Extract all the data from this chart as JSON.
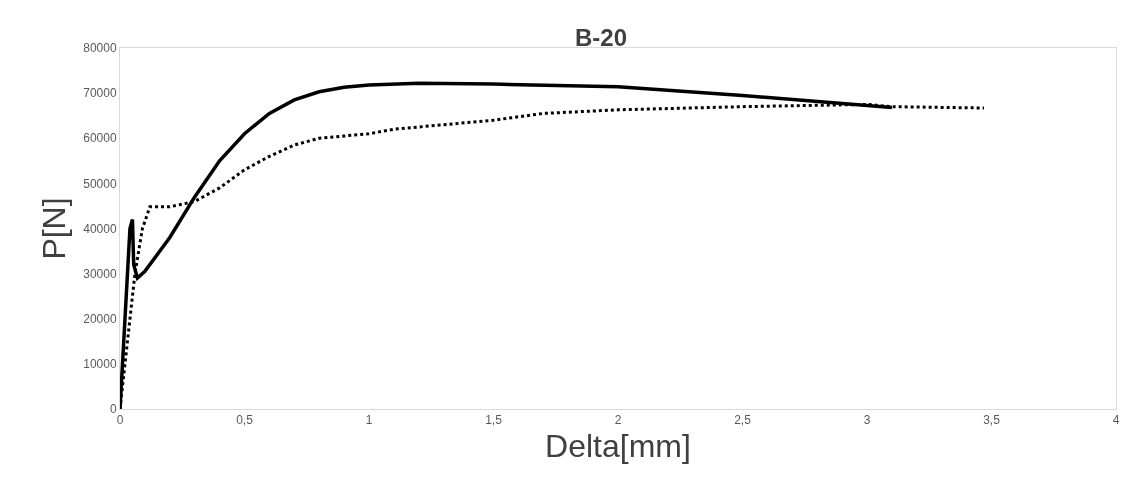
{
  "chart_data": {
    "type": "line",
    "title": "B-20",
    "xlabel": "Delta[mm]",
    "ylabel": "P[N]",
    "xlim": [
      0,
      4
    ],
    "xticks": [
      {
        "value": 0,
        "label": "0"
      },
      {
        "value": 0.5,
        "label": "0,5"
      },
      {
        "value": 1,
        "label": "1"
      },
      {
        "value": 1.5,
        "label": "1,5"
      },
      {
        "value": 2,
        "label": "2"
      },
      {
        "value": 2.5,
        "label": "2,5"
      },
      {
        "value": 3,
        "label": "3"
      },
      {
        "value": 3.5,
        "label": "3,5"
      },
      {
        "value": 4,
        "label": "4"
      }
    ],
    "ylim": [
      0,
      80000
    ],
    "yticks": [
      0,
      10000,
      20000,
      30000,
      40000,
      50000,
      60000,
      70000,
      80000
    ],
    "marker": "none",
    "series": [
      {
        "color": "#000000",
        "line_style": "solid",
        "x": [
          0,
          0.04,
          0.05,
          0.055,
          0.07,
          0.1,
          0.2,
          0.3,
          0.4,
          0.5,
          0.6,
          0.7,
          0.8,
          0.9,
          1.0,
          1.2,
          1.5,
          2.0,
          2.5,
          3.1
        ],
        "values": [
          0,
          40000,
          42000,
          32000,
          29000,
          30500,
          38000,
          47000,
          55000,
          61000,
          65500,
          68500,
          70300,
          71300,
          71800,
          72200,
          72000,
          71400,
          69500,
          66800
        ]
      },
      {
        "color": "#000000",
        "line_style": "dotted",
        "x": [
          0,
          0.03,
          0.06,
          0.09,
          0.12,
          0.2,
          0.3,
          0.4,
          0.5,
          0.6,
          0.7,
          0.8,
          0.9,
          1.0,
          1.1,
          1.3,
          1.5,
          1.7,
          2.0,
          2.5,
          3.0,
          3.1,
          3.47
        ],
        "values": [
          0,
          15000,
          30000,
          40000,
          44800,
          44800,
          46000,
          49000,
          53000,
          56000,
          58500,
          60000,
          60500,
          61000,
          62000,
          63000,
          64000,
          65500,
          66300,
          67000,
          67500,
          67000,
          66700
        ]
      }
    ]
  }
}
